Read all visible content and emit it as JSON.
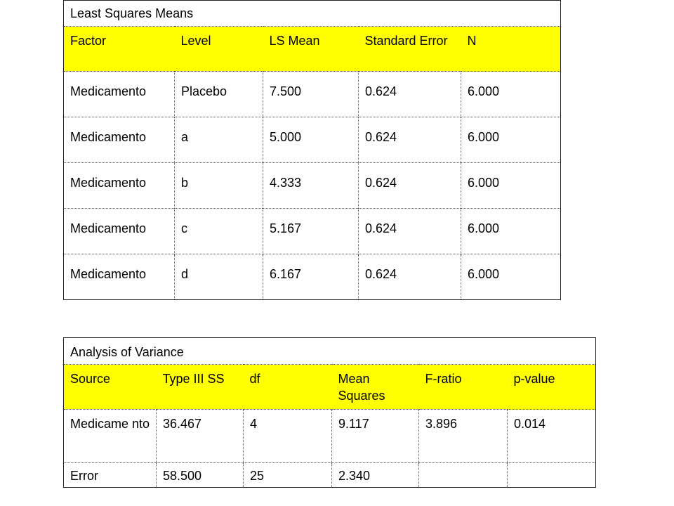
{
  "lsmeans": {
    "title": "Least Squares Means",
    "headers": [
      "Factor",
      "Level",
      "LS Mean",
      "Standard Error",
      "N"
    ],
    "rows": [
      [
        "Medicamento",
        "Placebo",
        "7.500",
        "0.624",
        "6.000"
      ],
      [
        "Medicamento",
        "a",
        "5.000",
        "0.624",
        "6.000"
      ],
      [
        "Medicamento",
        "b",
        "4.333",
        "0.624",
        "6.000"
      ],
      [
        "Medicamento",
        "c",
        "5.167",
        "0.624",
        "6.000"
      ],
      [
        "Medicamento",
        "d",
        "6.167",
        "0.624",
        "6.000"
      ]
    ]
  },
  "anova": {
    "title": "Analysis of Variance",
    "headers": [
      "Source",
      "Type III SS",
      "df",
      "Mean Squares",
      "F-ratio",
      "p-value"
    ],
    "rows": [
      [
        "Medicame nto",
        "36.467",
        "4",
        "9.117",
        "3.896",
        "0.014"
      ],
      [
        "Error",
        "58.500",
        "25",
        "2.340",
        "",
        ""
      ]
    ]
  },
  "colors": {
    "header_bg": "#ffff00",
    "border": "#222222"
  }
}
